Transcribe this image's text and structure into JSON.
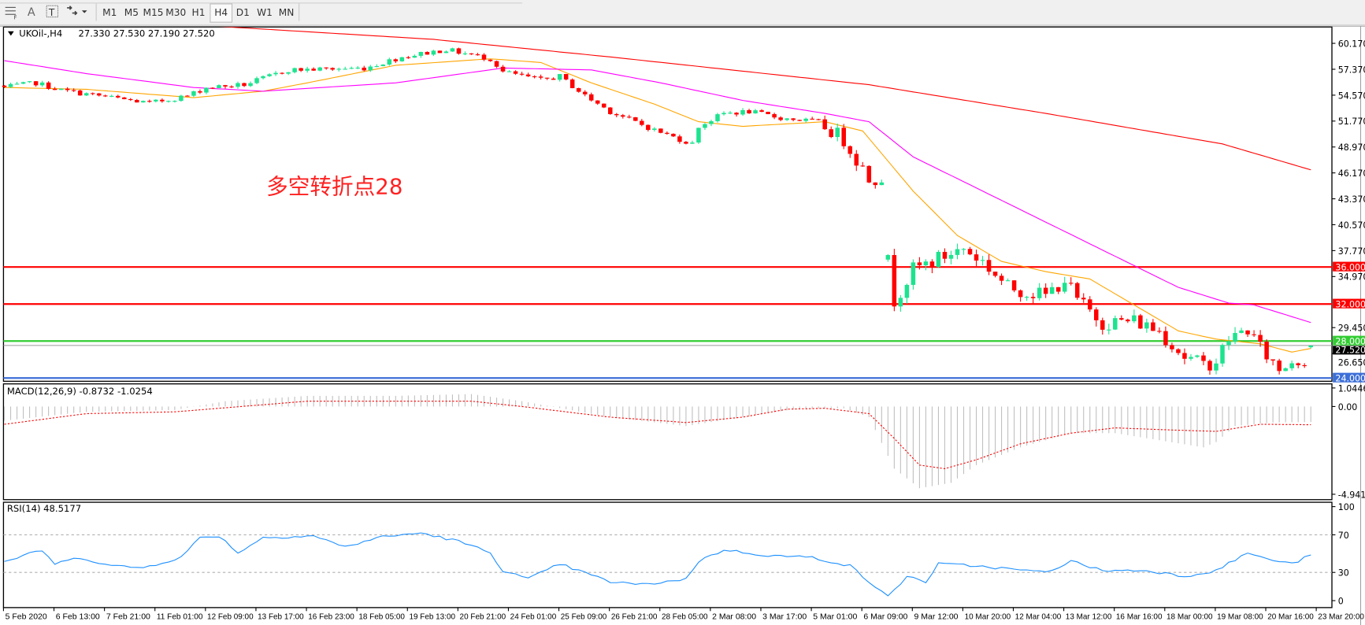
{
  "toolbar": {
    "icons": [
      "period-separator-icon",
      "text-icon",
      "text-label-icon",
      "arrows-icon"
    ],
    "timeframes": [
      "M1",
      "M5",
      "M15",
      "M30",
      "H1",
      "H4",
      "D1",
      "W1",
      "MN"
    ],
    "active_timeframe": "H4"
  },
  "header": {
    "symbol": "UKOil-,H4",
    "ohlc": "27.330 27.530 27.190 27.520"
  },
  "annotation": "多空转折点28",
  "macd_label": "MACD(12,26,9) -0.8732 -1.0254",
  "rsi_label": "RSI(14) 48.5177",
  "colors": {
    "bull": "#1de38f",
    "bear": "#ff0000",
    "ma_fast": "#ffa500",
    "ma_mid": "#ff00ff",
    "ma_slow": "#ff0000",
    "level_red": "#ff0000",
    "level_green": "#32cd32",
    "level_blue": "#3c6fd8",
    "rsi": "#1e90ff",
    "macd_hist": "#c0c0c0",
    "macd_signal": "#ff0000"
  },
  "chart_data": {
    "type": "candlestick",
    "symbol": "UKOil-",
    "timeframe": "H4",
    "bar_count": 208,
    "price_axis": {
      "ylim": [
        23.5,
        62.5
      ],
      "ticks": [
        "60.170",
        "57.370",
        "54.570",
        "51.770",
        "48.970",
        "46.170",
        "43.370",
        "40.570",
        "37.770",
        "34.970",
        "29.450",
        "26.650"
      ]
    },
    "time_axis": [
      "5 Feb 2020",
      "6 Feb 13:00",
      "7 Feb 21:00",
      "11 Feb 01:00",
      "12 Feb 09:00",
      "13 Feb 17:00",
      "16 Feb 23:00",
      "18 Feb 05:00",
      "19 Feb 13:00",
      "20 Feb 21:00",
      "24 Feb 01:00",
      "25 Feb 09:00",
      "26 Feb 21:00",
      "28 Feb 05:00",
      "2 Mar 08:00",
      "3 Mar 17:00",
      "5 Mar 01:00",
      "6 Mar 09:00",
      "9 Mar 12:00",
      "10 Mar 20:00",
      "12 Mar 04:00",
      "13 Mar 12:00",
      "16 Mar 16:00",
      "18 Mar 00:00",
      "19 Mar 08:00",
      "20 Mar 16:00",
      "23 Mar 20:00"
    ],
    "close_anchors": [
      [
        0,
        55.4
      ],
      [
        5,
        55.9
      ],
      [
        9,
        55.1
      ],
      [
        17,
        54.3
      ],
      [
        23,
        53.7
      ],
      [
        29,
        54.5
      ],
      [
        32,
        55.4
      ],
      [
        38,
        55.7
      ],
      [
        45,
        57.3
      ],
      [
        57,
        57.5
      ],
      [
        63,
        58.7
      ],
      [
        70,
        59.5
      ],
      [
        77,
        58.5
      ],
      [
        79,
        57.1
      ],
      [
        85,
        56.2
      ],
      [
        88,
        56.6
      ],
      [
        92,
        54.5
      ],
      [
        96,
        52.8
      ],
      [
        103,
        50.8
      ],
      [
        109,
        49.3
      ],
      [
        110,
        51.2
      ],
      [
        114,
        52.6
      ],
      [
        118,
        52.8
      ],
      [
        123,
        52.1
      ],
      [
        129,
        51.7
      ],
      [
        133,
        49.8
      ],
      [
        137,
        45.6
      ],
      [
        139,
        45.8
      ],
      [
        140,
        36.6
      ],
      [
        141,
        32.4
      ],
      [
        144,
        35.7
      ],
      [
        147,
        36.6
      ],
      [
        150,
        37.5
      ],
      [
        152,
        38.0
      ],
      [
        155,
        36.6
      ],
      [
        159,
        33.8
      ],
      [
        165,
        32.9
      ],
      [
        168,
        34.7
      ],
      [
        170,
        32.4
      ],
      [
        174,
        30.0
      ],
      [
        179,
        30.2
      ],
      [
        183,
        29.1
      ],
      [
        187,
        26.3
      ],
      [
        190,
        25.4
      ],
      [
        192,
        25.9
      ],
      [
        194,
        28.2
      ],
      [
        197,
        29.3
      ],
      [
        199,
        27.2
      ],
      [
        202,
        24.9
      ],
      [
        204,
        25.9
      ],
      [
        206,
        26.0
      ],
      [
        207,
        27.52
      ]
    ],
    "last_bar": {
      "open": 27.33,
      "high": 27.53,
      "low": 27.19,
      "close": 27.52
    },
    "moving_averages": [
      {
        "color_key": "ma_fast",
        "points": [
          [
            0,
            55.4
          ],
          [
            13,
            55.2
          ],
          [
            30,
            54.3
          ],
          [
            41,
            55.0
          ],
          [
            48,
            55.9
          ],
          [
            62,
            57.8
          ],
          [
            77,
            58.5
          ],
          [
            85,
            58.1
          ],
          [
            93,
            55.9
          ],
          [
            103,
            53.6
          ],
          [
            110,
            51.7
          ],
          [
            117,
            51.2
          ],
          [
            130,
            51.7
          ],
          [
            136,
            50.7
          ],
          [
            144,
            44.2
          ],
          [
            151,
            39.4
          ],
          [
            158,
            36.6
          ],
          [
            165,
            35.5
          ],
          [
            172,
            34.7
          ],
          [
            179,
            31.9
          ],
          [
            186,
            29.1
          ],
          [
            192,
            28.2
          ],
          [
            199,
            27.7
          ],
          [
            204,
            26.8
          ],
          [
            207,
            27.2
          ]
        ]
      },
      {
        "color_key": "ma_mid",
        "points": [
          [
            0,
            58.3
          ],
          [
            13,
            56.9
          ],
          [
            30,
            55.4
          ],
          [
            41,
            55.0
          ],
          [
            62,
            55.9
          ],
          [
            79,
            57.5
          ],
          [
            93,
            57.3
          ],
          [
            104,
            55.9
          ],
          [
            117,
            54.0
          ],
          [
            130,
            52.6
          ],
          [
            137,
            51.7
          ],
          [
            144,
            47.9
          ],
          [
            158,
            43.2
          ],
          [
            172,
            38.5
          ],
          [
            186,
            33.8
          ],
          [
            194,
            32.1
          ],
          [
            198,
            31.9
          ],
          [
            207,
            30.0
          ]
        ]
      },
      {
        "color_key": "ma_slow",
        "points": [
          [
            20,
            63.2
          ],
          [
            34,
            62.0
          ],
          [
            68,
            60.6
          ],
          [
            96,
            58.7
          ],
          [
            137,
            55.7
          ],
          [
            165,
            52.6
          ],
          [
            193,
            49.3
          ],
          [
            207,
            46.5
          ]
        ]
      }
    ],
    "levels": [
      {
        "value": 36.0,
        "label": "36.000",
        "color_key": "level_red"
      },
      {
        "value": 32.0,
        "label": "32.000",
        "color_key": "level_red"
      },
      {
        "value": 28.0,
        "label": "28.000",
        "color_key": "level_green"
      },
      {
        "value": 24.0,
        "label": "24.000",
        "color_key": "level_blue"
      }
    ],
    "current_price": {
      "value": 27.52,
      "label": "27.520"
    },
    "macd": {
      "params": "12,26,9",
      "ticks": [
        "1.0446",
        "0.00",
        "-4.9417"
      ],
      "ylim": [
        -4.9417,
        1.0446
      ],
      "main_anchors": [
        [
          0,
          -0.8
        ],
        [
          13,
          -0.3
        ],
        [
          27,
          -0.2
        ],
        [
          35,
          0.3
        ],
        [
          48,
          0.6
        ],
        [
          62,
          0.6
        ],
        [
          74,
          0.7
        ],
        [
          82,
          0.3
        ],
        [
          96,
          -0.6
        ],
        [
          108,
          -1.1
        ],
        [
          117,
          -0.6
        ],
        [
          126,
          -0.1
        ],
        [
          133,
          -0.1
        ],
        [
          137,
          -0.6
        ],
        [
          141,
          -3.5
        ],
        [
          145,
          -4.6
        ],
        [
          150,
          -4.3
        ],
        [
          154,
          -3.3
        ],
        [
          161,
          -2.3
        ],
        [
          169,
          -1.5
        ],
        [
          176,
          -1.5
        ],
        [
          183,
          -1.9
        ],
        [
          190,
          -2.3
        ],
        [
          192,
          -2.0
        ],
        [
          195,
          -1.1
        ],
        [
          201,
          -0.9
        ],
        [
          207,
          -0.8732
        ]
      ],
      "signal_anchors": [
        [
          0,
          -1.0
        ],
        [
          13,
          -0.4
        ],
        [
          27,
          -0.3
        ],
        [
          41,
          0.1
        ],
        [
          48,
          0.3
        ],
        [
          74,
          0.3
        ],
        [
          82,
          0.0
        ],
        [
          96,
          -0.6
        ],
        [
          108,
          -0.9
        ],
        [
          117,
          -0.6
        ],
        [
          124,
          -0.15
        ],
        [
          130,
          -0.1
        ],
        [
          137,
          -0.4
        ],
        [
          141,
          -1.8
        ],
        [
          145,
          -3.3
        ],
        [
          149,
          -3.5
        ],
        [
          154,
          -3.0
        ],
        [
          161,
          -2.1
        ],
        [
          169,
          -1.5
        ],
        [
          176,
          -1.2
        ],
        [
          183,
          -1.3
        ],
        [
          192,
          -1.4
        ],
        [
          199,
          -1.0
        ],
        [
          207,
          -1.0254
        ]
      ]
    },
    "rsi": {
      "period": 14,
      "ticks": [
        "100",
        "70",
        "30",
        "0"
      ],
      "levels": [
        70,
        30
      ],
      "anchors": [
        [
          0,
          41.7
        ],
        [
          6,
          53.7
        ],
        [
          8,
          38.9
        ],
        [
          12,
          46
        ],
        [
          17,
          37
        ],
        [
          22,
          35
        ],
        [
          28,
          46
        ],
        [
          31,
          67
        ],
        [
          34,
          69
        ],
        [
          37,
          51
        ],
        [
          41,
          67
        ],
        [
          49,
          69
        ],
        [
          54,
          57
        ],
        [
          59,
          67
        ],
        [
          66,
          72
        ],
        [
          72,
          63
        ],
        [
          77,
          51
        ],
        [
          79,
          32
        ],
        [
          83,
          23
        ],
        [
          88,
          39
        ],
        [
          96,
          20
        ],
        [
          101,
          17
        ],
        [
          108,
          23
        ],
        [
          110,
          42
        ],
        [
          114,
          54
        ],
        [
          121,
          48
        ],
        [
          128,
          46
        ],
        [
          134,
          37
        ],
        [
          137,
          20
        ],
        [
          140,
          4
        ],
        [
          143,
          26
        ],
        [
          146,
          20
        ],
        [
          148,
          39
        ],
        [
          154,
          37
        ],
        [
          165,
          30
        ],
        [
          169,
          42
        ],
        [
          174,
          32
        ],
        [
          181,
          32
        ],
        [
          187,
          26
        ],
        [
          192,
          32
        ],
        [
          197,
          51
        ],
        [
          199,
          46
        ],
        [
          204,
          39
        ],
        [
          207,
          48.5177
        ]
      ]
    }
  }
}
